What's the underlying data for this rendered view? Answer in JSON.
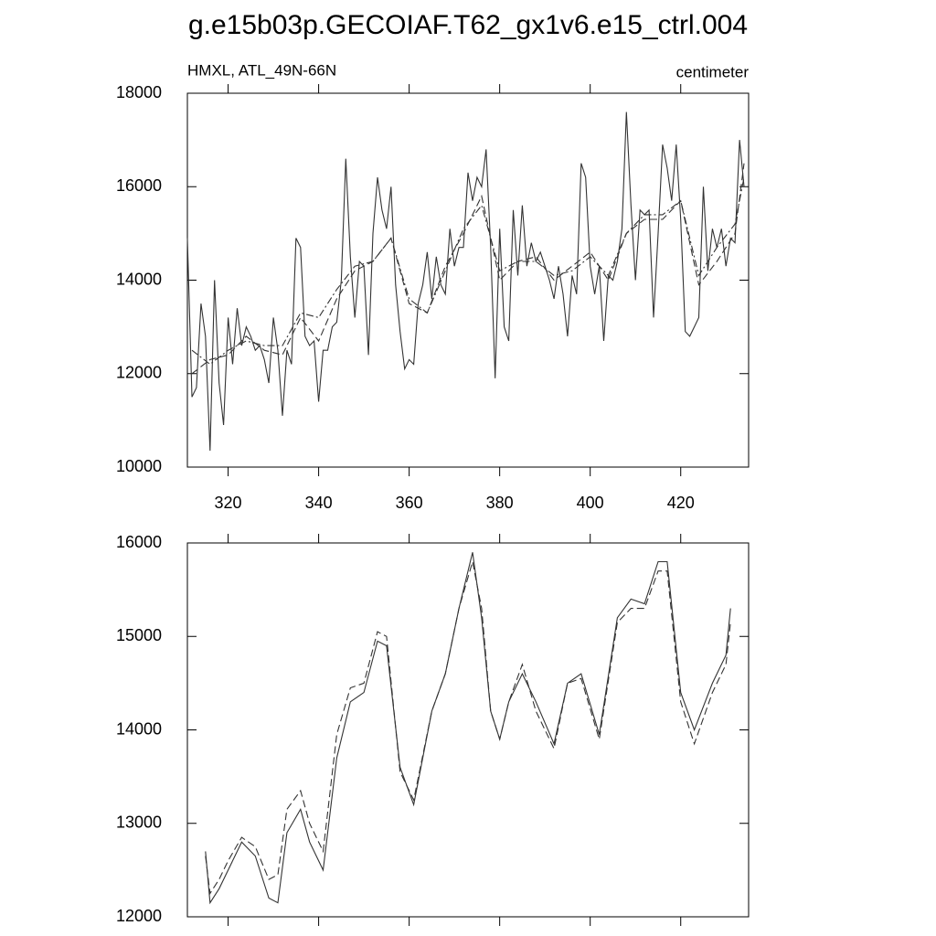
{
  "title": "g.e15b03p.GECOIAF.T62_gx1v6.e15_ctrl.004",
  "chart_data": [
    {
      "type": "line",
      "subtitle_left": "HMXL, ATL_49N-66N",
      "subtitle_right": "centimeter",
      "xlim": [
        311,
        435
      ],
      "xticks": [
        320,
        340,
        360,
        380,
        400,
        420
      ],
      "show_xtick_labels": true,
      "ylim": [
        10000,
        18000
      ],
      "yticks": [
        10000,
        12000,
        14000,
        16000,
        18000
      ],
      "series": [
        {
          "color": "#333333",
          "dash": "solid",
          "x": [
            311,
            312,
            313,
            314,
            315,
            316,
            317,
            318,
            319,
            320,
            321,
            322,
            323,
            324,
            325,
            326,
            327,
            328,
            329,
            330,
            331,
            332,
            333,
            334,
            335,
            336,
            337,
            338,
            339,
            340,
            341,
            342,
            343,
            344,
            345,
            346,
            347,
            348,
            349,
            350,
            351,
            352,
            353,
            354,
            355,
            356,
            357,
            358,
            359,
            360,
            361,
            362,
            363,
            364,
            365,
            366,
            367,
            368,
            369,
            370,
            371,
            372,
            373,
            374,
            375,
            376,
            377,
            378,
            379,
            380,
            381,
            382,
            383,
            384,
            385,
            386,
            387,
            388,
            389,
            390,
            391,
            392,
            393,
            394,
            395,
            396,
            397,
            398,
            399,
            400,
            401,
            402,
            403,
            404,
            405,
            406,
            407,
            408,
            409,
            410,
            411,
            412,
            413,
            414,
            415,
            416,
            417,
            418,
            419,
            420,
            421,
            422,
            423,
            424,
            425,
            426,
            427,
            428,
            429,
            430,
            431,
            432,
            433,
            434
          ],
          "values": [
            14900,
            11500,
            11700,
            13500,
            12800,
            10350,
            14000,
            11800,
            10900,
            13200,
            12200,
            13400,
            12600,
            13000,
            12800,
            12500,
            12600,
            12300,
            11800,
            13200,
            12500,
            11100,
            12500,
            12200,
            14900,
            14700,
            12800,
            12600,
            12700,
            11400,
            12500,
            12500,
            13000,
            13100,
            14000,
            16600,
            14500,
            13200,
            14400,
            14300,
            12400,
            15000,
            16200,
            15500,
            15100,
            16000,
            13900,
            12900,
            12100,
            12300,
            12200,
            13500,
            13900,
            14600,
            13600,
            14500,
            13900,
            13700,
            15100,
            14300,
            14700,
            14700,
            16300,
            15700,
            16200,
            16000,
            16800,
            14700,
            11900,
            15100,
            13000,
            12700,
            15500,
            14100,
            15600,
            14300,
            14800,
            14400,
            14600,
            14300,
            14000,
            13600,
            14300,
            13700,
            12800,
            14100,
            13700,
            16500,
            16200,
            14300,
            13700,
            14300,
            12700,
            14100,
            14000,
            14400,
            15100,
            17600,
            15600,
            14000,
            15500,
            15400,
            15500,
            13200,
            15000,
            16900,
            16400,
            15700,
            16900,
            15300,
            12900,
            12800,
            13000,
            13200,
            16000,
            14200,
            15100,
            14700,
            15100,
            14300,
            14900,
            14800,
            17000,
            16000
          ]
        },
        {
          "color": "#333333",
          "dash": "dashed",
          "x": [
            312,
            316,
            320,
            324,
            328,
            332,
            336,
            340,
            344,
            348,
            352,
            356,
            360,
            364,
            368,
            372,
            376,
            380,
            384,
            388,
            392,
            396,
            400,
            404,
            408,
            412,
            416,
            420,
            424,
            428,
            432,
            434
          ],
          "values": [
            12000,
            12300,
            12400,
            12800,
            12500,
            12400,
            13200,
            12700,
            13600,
            14200,
            14400,
            14900,
            13500,
            13300,
            14300,
            15000,
            15800,
            14000,
            14400,
            14500,
            14000,
            14300,
            14600,
            14000,
            15000,
            15300,
            15300,
            15700,
            13900,
            14400,
            15000,
            16500
          ]
        },
        {
          "color": "#333333",
          "dash": "dashdot",
          "x": [
            312,
            316,
            320,
            324,
            328,
            332,
            336,
            340,
            344,
            348,
            352,
            356,
            360,
            364,
            368,
            372,
            376,
            380,
            384,
            388,
            392,
            396,
            400,
            404,
            408,
            412,
            416,
            420,
            424,
            428,
            432,
            434
          ],
          "values": [
            12500,
            12200,
            12500,
            12700,
            12600,
            12600,
            13300,
            13200,
            13800,
            14300,
            14400,
            14900,
            13600,
            13300,
            14200,
            15100,
            15600,
            14200,
            14400,
            14400,
            14100,
            14200,
            14500,
            14100,
            15000,
            15400,
            15400,
            15700,
            14100,
            14700,
            15200,
            16200
          ]
        }
      ]
    },
    {
      "type": "line",
      "xlim": [
        311,
        435
      ],
      "xticks": [
        320,
        340,
        360,
        380,
        400,
        420
      ],
      "show_xtick_labels": false,
      "ylim": [
        12000,
        16000
      ],
      "yticks": [
        12000,
        13000,
        14000,
        15000,
        16000
      ],
      "x": [
        315,
        316,
        318,
        320,
        323,
        326,
        329,
        331,
        333,
        336,
        338,
        341,
        344,
        347,
        350,
        353,
        355,
        358,
        361,
        365,
        368,
        371,
        374,
        376,
        378,
        380,
        382,
        385,
        388,
        392,
        395,
        398,
        402,
        406,
        409,
        412,
        415,
        417,
        420,
        423,
        427,
        430,
        431
      ],
      "series": [
        {
          "color": "#333333",
          "dash": "solid",
          "values": [
            12700,
            12150,
            12300,
            12500,
            12800,
            12650,
            12200,
            12150,
            12900,
            13150,
            12800,
            12500,
            13700,
            14300,
            14400,
            14950,
            14900,
            13600,
            13200,
            14200,
            14600,
            15300,
            15900,
            15200,
            14200,
            13900,
            14300,
            14600,
            14300,
            13850,
            14500,
            14600,
            13950,
            15200,
            15400,
            15350,
            15800,
            15800,
            14400,
            14000,
            14500,
            14800,
            15300
          ]
        },
        {
          "color": "#333333",
          "dash": "dashed",
          "values": [
            12650,
            12250,
            12400,
            12600,
            12850,
            12750,
            12400,
            12450,
            13150,
            13350,
            13000,
            12700,
            13950,
            14450,
            14500,
            15050,
            15000,
            13550,
            13250,
            14200,
            14600,
            15300,
            15800,
            15300,
            14200,
            13900,
            14300,
            14700,
            14200,
            13800,
            14500,
            14550,
            13900,
            15150,
            15300,
            15300,
            15700,
            15700,
            14300,
            13850,
            14400,
            14700,
            15150
          ]
        }
      ]
    }
  ]
}
